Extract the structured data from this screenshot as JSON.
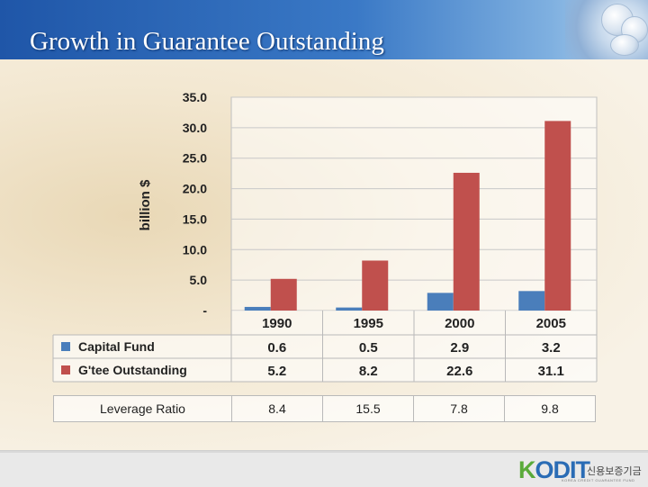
{
  "slide": {
    "title": "Growth in Guarantee Outstanding"
  },
  "colors": {
    "capital_fund": "#4a7ebb",
    "gtee_outstanding": "#c0504d",
    "title_bar": "#2a64b3"
  },
  "chart_data": {
    "type": "bar",
    "categories": [
      "1990",
      "1995",
      "2000",
      "2005"
    ],
    "series": [
      {
        "name": "Capital Fund",
        "values": [
          0.6,
          0.5,
          2.9,
          3.2
        ],
        "labels": [
          "0.6",
          "0.5",
          "2.9",
          "3.2"
        ],
        "color": "#4a7ebb"
      },
      {
        "name": "G'tee Outstanding",
        "values": [
          5.2,
          8.2,
          22.6,
          31.1
        ],
        "labels": [
          "5.2",
          "8.2",
          "22.6",
          "31.1"
        ],
        "color": "#c0504d"
      }
    ],
    "ylabel": "billion $",
    "ylim": [
      0,
      35
    ],
    "yticks": [
      "35.0",
      "30.0",
      "25.0",
      "20.0",
      "15.0",
      "10.0",
      "5.0",
      "-"
    ],
    "ytick_values": [
      35,
      30,
      25,
      20,
      15,
      10,
      5,
      0
    ],
    "grid": true,
    "legend": "data-table"
  },
  "leverage_table": {
    "label": "Leverage Ratio",
    "values": [
      "8.4",
      "15.5",
      "7.8",
      "9.8"
    ]
  },
  "logo": {
    "korean": "신용보증기금",
    "subtitle": "KOREA CREDIT GUARANTEE FUND"
  }
}
